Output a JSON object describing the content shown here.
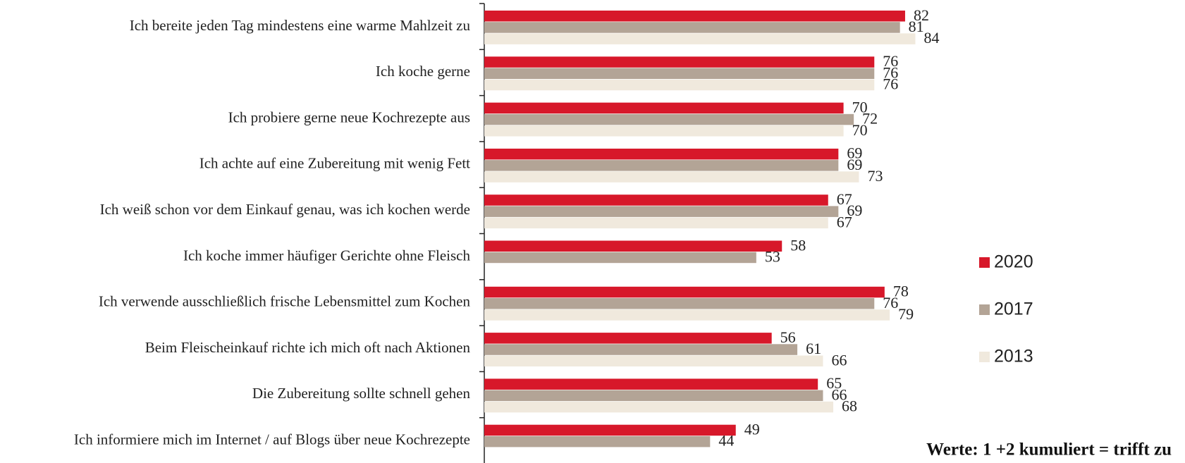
{
  "chart_data": {
    "type": "bar",
    "orientation": "horizontal",
    "categories": [
      "Ich bereite jeden Tag mindestens eine warme Mahlzeit zu",
      "Ich koche gerne",
      "Ich probiere gerne neue Kochrezepte aus",
      "Ich achte auf eine Zubereitung mit wenig Fett",
      "Ich weiß schon vor dem Einkauf genau, was ich kochen werde",
      "Ich koche immer häufiger Gerichte ohne Fleisch",
      "Ich verwende ausschließlich frische Lebensmittel zum Kochen",
      "Beim Fleischeinkauf richte ich mich oft nach Aktionen",
      "Die Zubereitung sollte schnell gehen",
      "Ich informiere mich im Internet / auf Blogs über neue Kochrezepte"
    ],
    "series": [
      {
        "name": "2020",
        "color": "#d7182a",
        "values": [
          82,
          76,
          70,
          69,
          67,
          58,
          78,
          56,
          65,
          49
        ]
      },
      {
        "name": "2017",
        "color": "#b3a496",
        "values": [
          81,
          76,
          72,
          69,
          69,
          53,
          76,
          61,
          66,
          44
        ]
      },
      {
        "name": "2013",
        "color": "#f0e9dd",
        "values": [
          84,
          76,
          70,
          73,
          67,
          null,
          79,
          66,
          68,
          null
        ]
      }
    ],
    "legend": "right",
    "note": "Werte: 1 +2 kumuliert = trifft zu"
  }
}
